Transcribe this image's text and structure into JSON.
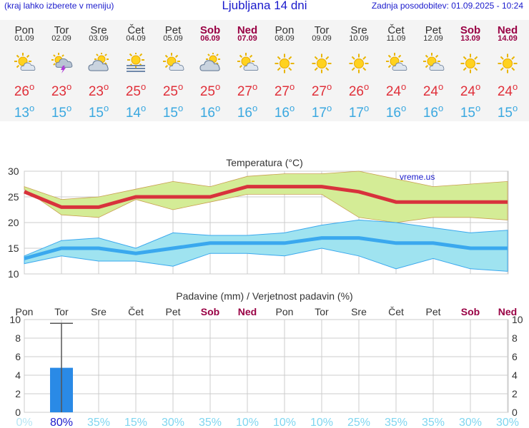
{
  "header": {
    "left_note": "(kraj lahko izberete v meniju)",
    "title": "Ljubljana 14 dni",
    "updated": "Zadnja posodobitev: 01.09.2025 - 10:24"
  },
  "forecast": {
    "deg_symbol": "o",
    "days": [
      {
        "day": "Pon",
        "date": "01.09",
        "icon": "sun-cloud-icon",
        "tmax": "26",
        "tmin": "13",
        "weekend": false
      },
      {
        "day": "Tor",
        "date": "02.09",
        "icon": "thunderstorm-sun-icon",
        "tmax": "23",
        "tmin": "15",
        "weekend": false
      },
      {
        "day": "Sre",
        "date": "03.09",
        "icon": "cloud-sun-icon",
        "tmax": "23",
        "tmin": "15",
        "weekend": false
      },
      {
        "day": "Čet",
        "date": "04.09",
        "icon": "fog-sun-icon",
        "tmax": "25",
        "tmin": "14",
        "weekend": false
      },
      {
        "day": "Pet",
        "date": "05.09",
        "icon": "sun-cloud-icon",
        "tmax": "25",
        "tmin": "15",
        "weekend": false
      },
      {
        "day": "Sob",
        "date": "06.09",
        "icon": "cloud-sun-icon",
        "tmax": "25",
        "tmin": "16",
        "weekend": true
      },
      {
        "day": "Ned",
        "date": "07.09",
        "icon": "sun-cloud-icon",
        "tmax": "27",
        "tmin": "16",
        "weekend": true
      },
      {
        "day": "Pon",
        "date": "08.09",
        "icon": "sun-icon",
        "tmax": "27",
        "tmin": "16",
        "weekend": false
      },
      {
        "day": "Tor",
        "date": "09.09",
        "icon": "sun-icon",
        "tmax": "27",
        "tmin": "17",
        "weekend": false
      },
      {
        "day": "Sre",
        "date": "10.09",
        "icon": "sun-icon",
        "tmax": "26",
        "tmin": "17",
        "weekend": false
      },
      {
        "day": "Čet",
        "date": "11.09",
        "icon": "sun-cloud-icon",
        "tmax": "24",
        "tmin": "16",
        "weekend": false
      },
      {
        "day": "Pet",
        "date": "12.09",
        "icon": "sun-cloud-icon",
        "tmax": "24",
        "tmin": "16",
        "weekend": false
      },
      {
        "day": "Sob",
        "date": "13.09",
        "icon": "sun-icon",
        "tmax": "24",
        "tmin": "15",
        "weekend": true
      },
      {
        "day": "Ned",
        "date": "14.09",
        "icon": "sun-icon",
        "tmax": "24",
        "tmin": "15",
        "weekend": true
      }
    ]
  },
  "colors": {
    "tmax_line": "#d8323c",
    "tmax_band": "#d4ec96",
    "tmax_band_edge": "#c9a050",
    "tmin_line": "#3aa8ee",
    "tmin_band": "#9fe3f0",
    "tmin_band_edge": "#3aa8ee",
    "precip_bar": "#2a8ae6",
    "weekend_text": "#990044",
    "grid": "#cccccc",
    "pct_low": "#7fd6f0",
    "pct_high": "#1a1acc"
  },
  "chart_data": [
    {
      "type": "line",
      "title": "Temperatura (°C)",
      "credit": "vreme.us",
      "ylim": [
        10,
        30
      ],
      "yticks": [
        10,
        15,
        20,
        25,
        30
      ],
      "grid": true,
      "x": [
        "01.09",
        "02.09",
        "03.09",
        "04.09",
        "05.09",
        "06.09",
        "07.09",
        "08.09",
        "09.09",
        "10.09",
        "11.09",
        "12.09",
        "13.09",
        "14.09"
      ],
      "series": [
        {
          "role": "max",
          "values": [
            26,
            23,
            23,
            25,
            25,
            25,
            27,
            27,
            27,
            26,
            24,
            24,
            24,
            24
          ],
          "band_low": [
            26.5,
            21.5,
            21,
            24.5,
            22.5,
            24,
            25.5,
            25.5,
            25.5,
            21,
            20,
            21,
            21,
            20.5
          ],
          "band_high": [
            27,
            24.5,
            25,
            26.5,
            28,
            27,
            29,
            29.5,
            29.5,
            30,
            28.5,
            27,
            27.5,
            28
          ]
        },
        {
          "role": "min",
          "values": [
            13,
            15,
            15,
            14,
            15,
            16,
            16,
            16,
            17,
            17,
            16,
            16,
            15,
            15
          ],
          "band_low": [
            12,
            13.5,
            12.5,
            12.5,
            11.5,
            14,
            14,
            13.5,
            15,
            13.5,
            11,
            13,
            11,
            10.5
          ],
          "band_high": [
            13.5,
            16.5,
            17,
            15,
            18,
            17.5,
            17.5,
            18,
            19.5,
            20.5,
            20,
            19,
            18,
            18.5
          ]
        }
      ]
    },
    {
      "type": "bar",
      "title": "Padavine (mm) / Verjetnost padavin (%)",
      "ylim": [
        0,
        10
      ],
      "yticks": [
        0,
        2,
        4,
        6,
        8,
        10
      ],
      "grid": true,
      "categories": [
        "Pon",
        "Tor",
        "Sre",
        "Čet",
        "Pet",
        "Sob",
        "Ned",
        "Pon",
        "Tor",
        "Sre",
        "Čet",
        "Pet",
        "Sob",
        "Ned"
      ],
      "weekend": [
        false,
        false,
        false,
        false,
        false,
        true,
        true,
        false,
        false,
        false,
        false,
        false,
        true,
        true
      ],
      "values": [
        0,
        4.8,
        0,
        0,
        0,
        0,
        0,
        0,
        0,
        0,
        0,
        0,
        0,
        0
      ],
      "range_high": [
        null,
        9.6,
        null,
        null,
        null,
        null,
        null,
        null,
        null,
        null,
        null,
        null,
        null,
        null
      ],
      "probability": [
        "0%",
        "80%",
        "35%",
        "15%",
        "30%",
        "35%",
        "10%",
        "10%",
        "10%",
        "25%",
        "35%",
        "35%",
        "30%",
        "30%"
      ]
    }
  ]
}
